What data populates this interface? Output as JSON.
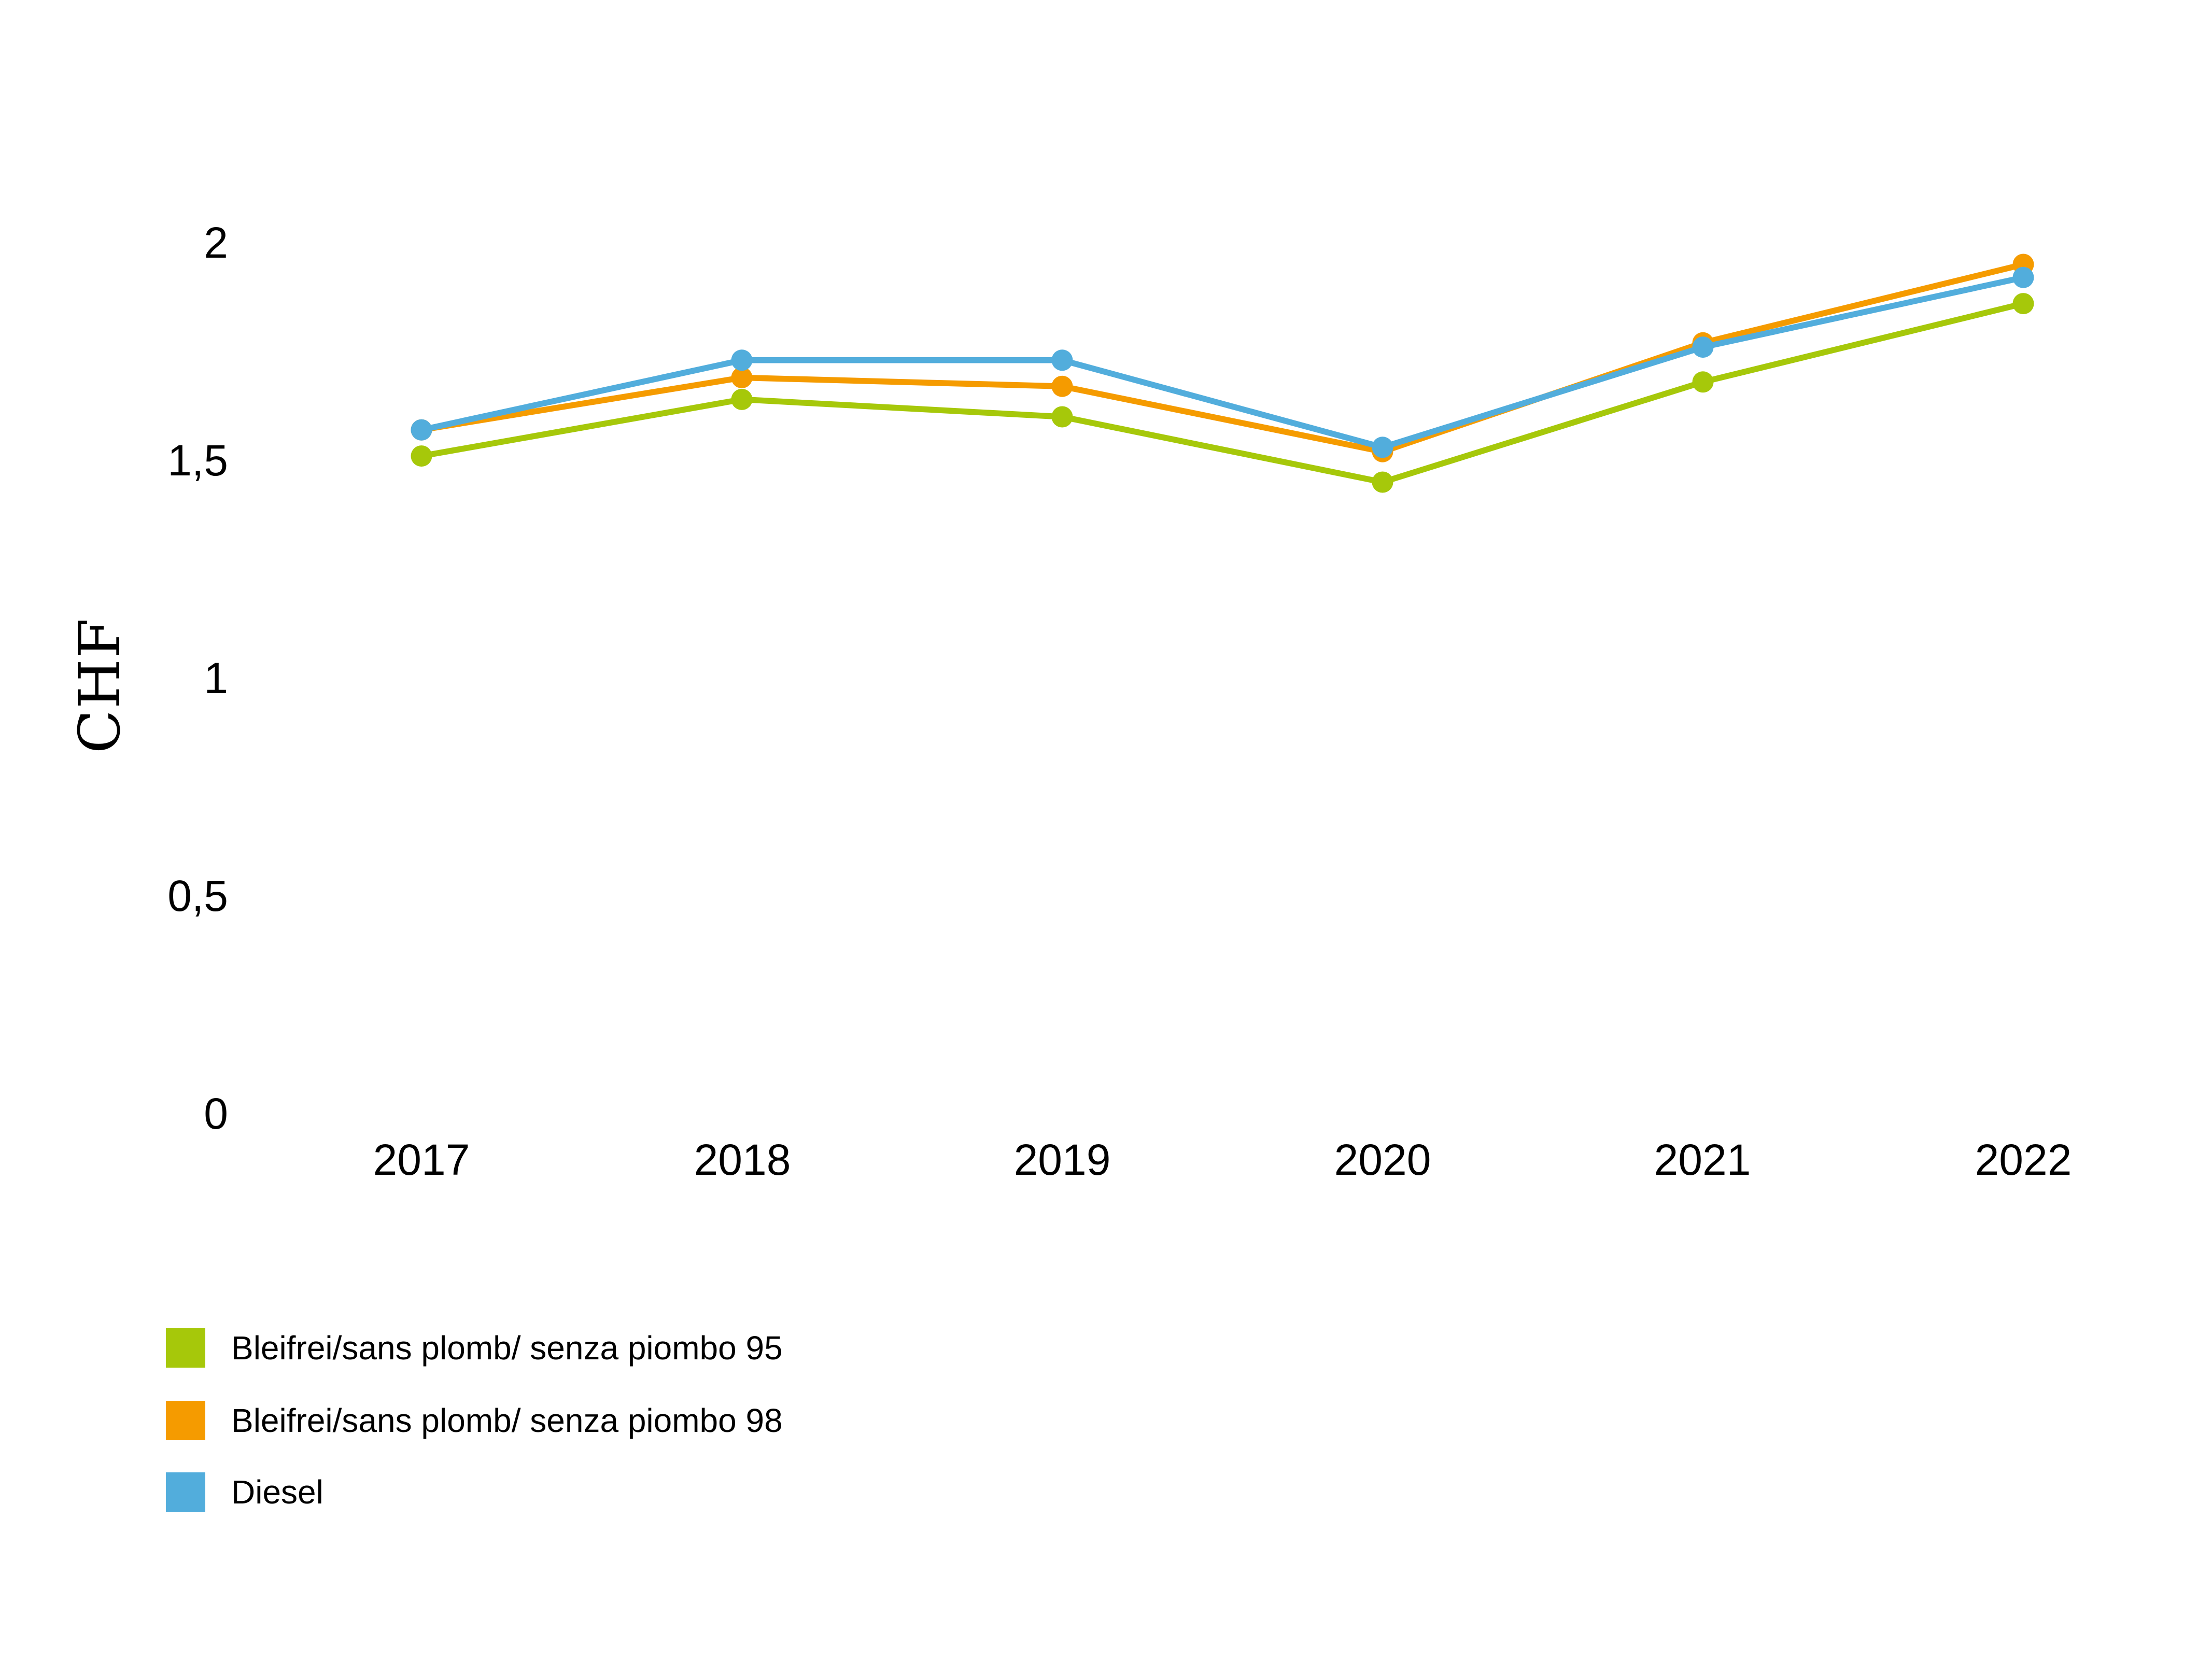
{
  "chart_data": {
    "type": "line",
    "title": "",
    "xlabel": "",
    "ylabel": "CHF",
    "x_categories": [
      "2017",
      "2018",
      "2019",
      "2020",
      "2021",
      "2022"
    ],
    "y_ticks": [
      "2",
      "1,5",
      "1",
      "0,5",
      "0"
    ],
    "y_tick_values": [
      2,
      1.5,
      1,
      0.5,
      0
    ],
    "ylim": [
      0,
      2
    ],
    "grid": false,
    "legend_position": "bottom-left",
    "marker": "circle",
    "series": [
      {
        "id": "bleifrei-95",
        "label": "Bleifrei/sans plomb/ senza piombo 95",
        "color": "#A6C80A",
        "values": [
          1.51,
          1.64,
          1.6,
          1.45,
          1.68,
          1.86
        ]
      },
      {
        "id": "bleifrei-98",
        "label": "Bleifrei/sans plomb/ senza piombo 98",
        "color": "#F59B00",
        "values": [
          1.57,
          1.69,
          1.67,
          1.52,
          1.77,
          1.95
        ]
      },
      {
        "id": "diesel",
        "label": "Diesel",
        "color": "#52ADDC",
        "values": [
          1.57,
          1.73,
          1.73,
          1.53,
          1.76,
          1.92
        ]
      }
    ]
  }
}
